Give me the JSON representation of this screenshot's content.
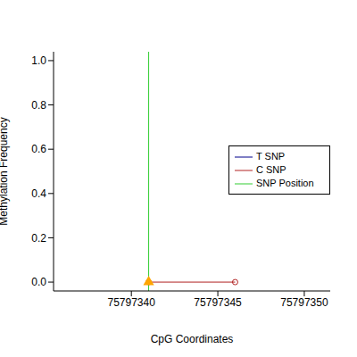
{
  "chart_data": {
    "type": "line",
    "x_label": "CpG Coordinates",
    "y_label": "Methylation Frequency",
    "xlim": [
      75797335.5,
      75797351.5
    ],
    "xticks": [
      75797340,
      75797345,
      75797350
    ],
    "ylim": [
      -0.04,
      1.04
    ],
    "yticks": [
      {
        "value": 0,
        "label": "0.0"
      },
      {
        "value": 0.2,
        "label": "0.2"
      },
      {
        "value": 0.4,
        "label": "0.4"
      },
      {
        "value": 0.6,
        "label": "0.6"
      },
      {
        "value": 0.8,
        "label": "0.8"
      },
      {
        "value": 1.0,
        "label": "1.0"
      }
    ],
    "legend": "right",
    "series": [
      {
        "name": "T SNP",
        "color": "#00008b",
        "marker": "circle",
        "x": [],
        "values": []
      },
      {
        "name": "C SNP",
        "color": "#b22222",
        "marker": "circle",
        "x": [
          75797341,
          75797346
        ],
        "values": [
          0,
          0
        ]
      }
    ],
    "snp_position": {
      "name": "SNP Position",
      "x": 75797341,
      "color": "#32cd32"
    },
    "markers": [
      {
        "x": 75797341,
        "y": 0,
        "color": "#ffa500",
        "marker": "triangle"
      }
    ]
  }
}
